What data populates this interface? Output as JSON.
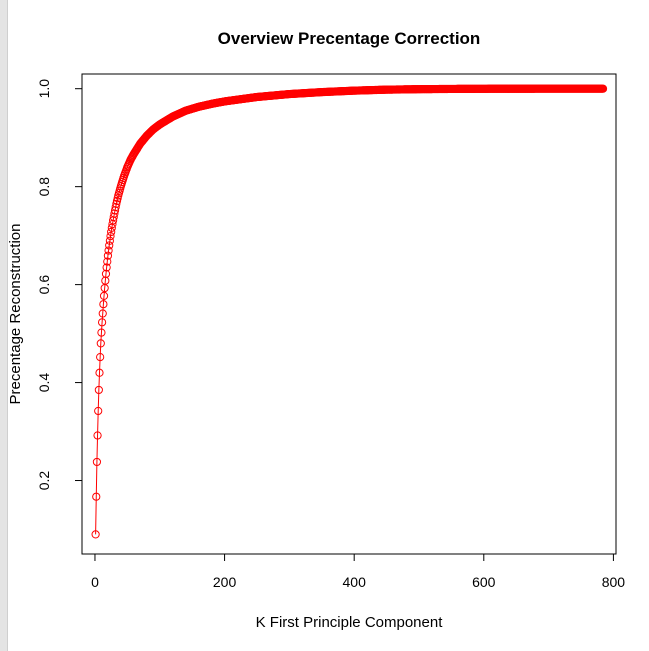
{
  "chart_data": {
    "type": "line",
    "title": "Overview Precentage Correction",
    "xlabel": "K First Principle Component",
    "ylabel": "Precentage Reconstruction",
    "xlim": [
      -20,
      804
    ],
    "ylim": [
      0.05,
      1.03
    ],
    "xticks": [
      0,
      200,
      400,
      600,
      800
    ],
    "xtick_labels": [
      "0",
      "200",
      "400",
      "600",
      "800"
    ],
    "yticks": [
      0.2,
      0.4,
      0.6,
      0.8,
      1.0
    ],
    "ytick_labels": [
      "0.2",
      "0.4",
      "0.6",
      "0.8",
      "1.0"
    ],
    "grid": false,
    "series": [
      {
        "color": "#ff0000",
        "marker": "open-circle",
        "x": [
          1,
          2,
          3,
          4,
          5,
          6,
          7,
          8,
          9,
          10,
          11,
          12,
          13,
          14,
          15,
          16,
          17,
          18,
          19,
          20,
          22,
          24,
          26,
          28,
          30,
          33,
          36,
          40,
          45,
          50,
          55,
          60,
          70,
          80,
          90,
          100,
          120,
          140,
          160,
          180,
          200,
          250,
          300,
          350,
          400,
          450,
          500,
          550,
          600,
          650,
          700,
          750,
          784
        ],
        "y": [
          0.09,
          0.167,
          0.238,
          0.292,
          0.342,
          0.385,
          0.42,
          0.452,
          0.48,
          0.502,
          0.523,
          0.541,
          0.56,
          0.577,
          0.593,
          0.608,
          0.622,
          0.635,
          0.647,
          0.659,
          0.68,
          0.699,
          0.716,
          0.731,
          0.745,
          0.765,
          0.782,
          0.801,
          0.822,
          0.84,
          0.855,
          0.867,
          0.888,
          0.904,
          0.917,
          0.927,
          0.943,
          0.955,
          0.963,
          0.969,
          0.974,
          0.983,
          0.989,
          0.993,
          0.996,
          0.998,
          0.999,
          0.9995,
          0.9998,
          0.9999,
          1.0,
          1.0,
          1.0
        ]
      }
    ]
  }
}
